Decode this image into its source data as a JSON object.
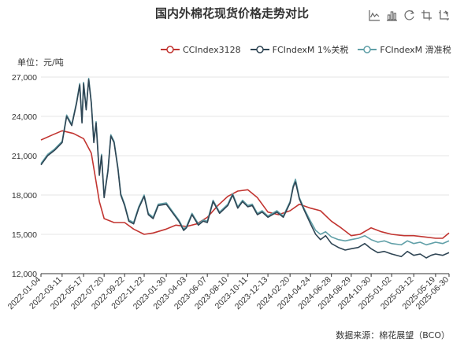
{
  "title": "国内外棉花现货价格走势对比",
  "unit_label": "单位：元/吨",
  "source_label": "数据来源：棉花展望（BCO）",
  "toolbox": [
    {
      "name": "line-chart-icon"
    },
    {
      "name": "bar-chart-icon"
    },
    {
      "name": "restore-icon"
    },
    {
      "name": "zoom-select-icon"
    },
    {
      "name": "zoom-reset-icon"
    }
  ],
  "colors": {
    "CCIndex3128": "#c23531",
    "FCIndexM_1pct": "#2f4554",
    "FCIndexM_sliding": "#61a0a8"
  },
  "chart_data": {
    "type": "line",
    "title": "国内外棉花现货价格走势对比",
    "ylabel": "单位：元/吨",
    "ylim": [
      12000,
      27000
    ],
    "yticks": [
      12000,
      15000,
      18000,
      21000,
      24000,
      27000
    ],
    "ytick_labels": [
      "12,000",
      "15,000",
      "18,000",
      "21,000",
      "24,000",
      "27,000"
    ],
    "x_range": [
      "2022-01-04",
      "2025-06-30"
    ],
    "xtick_labels": [
      "2022-01-04",
      "2022-03-11",
      "2022-05-17",
      "2022-07-20",
      "2022-09-22",
      "2022-11-22",
      "2023-01-30",
      "2023-04-03",
      "2023-06-07",
      "2023-08-10",
      "2023-10-11",
      "2023-12-13",
      "2024-02-20",
      "2024-04-24",
      "2024-06-28",
      "2024-08-29",
      "2024-10-30",
      "2025-01-02",
      "2025-03-12",
      "2025-05-19",
      "2025-06-30"
    ],
    "grid": true,
    "legend": "top",
    "series": [
      {
        "name": "CCIndex3128",
        "color": "#c23531",
        "points": [
          [
            "2022-01-04",
            22200
          ],
          [
            "2022-02-10",
            22600
          ],
          [
            "2022-03-11",
            22900
          ],
          [
            "2022-04-15",
            22700
          ],
          [
            "2022-05-17",
            22300
          ],
          [
            "2022-06-10",
            21200
          ],
          [
            "2022-06-25",
            19000
          ],
          [
            "2022-07-05",
            17500
          ],
          [
            "2022-07-20",
            16200
          ],
          [
            "2022-08-20",
            15900
          ],
          [
            "2022-09-22",
            15900
          ],
          [
            "2022-10-20",
            15400
          ],
          [
            "2022-11-22",
            15000
          ],
          [
            "2022-12-20",
            15100
          ],
          [
            "2023-01-30",
            15400
          ],
          [
            "2023-03-01",
            15700
          ],
          [
            "2023-04-03",
            15600
          ],
          [
            "2023-05-05",
            15800
          ],
          [
            "2023-06-07",
            16300
          ],
          [
            "2023-07-10",
            17200
          ],
          [
            "2023-08-10",
            17900
          ],
          [
            "2023-09-10",
            18300
          ],
          [
            "2023-10-11",
            18400
          ],
          [
            "2023-11-10",
            17800
          ],
          [
            "2023-12-13",
            16700
          ],
          [
            "2024-01-15",
            16500
          ],
          [
            "2024-02-20",
            16800
          ],
          [
            "2024-03-20",
            17300
          ],
          [
            "2024-04-24",
            17000
          ],
          [
            "2024-05-25",
            16800
          ],
          [
            "2024-06-28",
            16000
          ],
          [
            "2024-07-28",
            15500
          ],
          [
            "2024-08-29",
            14900
          ],
          [
            "2024-09-25",
            15000
          ],
          [
            "2024-10-30",
            15500
          ],
          [
            "2024-12-01",
            15200
          ],
          [
            "2025-01-02",
            15000
          ],
          [
            "2025-02-10",
            14900
          ],
          [
            "2025-03-12",
            14900
          ],
          [
            "2025-04-15",
            14800
          ],
          [
            "2025-05-19",
            14700
          ],
          [
            "2025-06-10",
            14700
          ],
          [
            "2025-06-30",
            15100
          ]
        ]
      },
      {
        "name": "FCIndexM 1%关税",
        "color": "#2f4554",
        "points": [
          [
            "2022-01-04",
            20300
          ],
          [
            "2022-01-25",
            21000
          ],
          [
            "2022-02-15",
            21400
          ],
          [
            "2022-03-11",
            22000
          ],
          [
            "2022-03-25",
            24000
          ],
          [
            "2022-04-10",
            23300
          ],
          [
            "2022-04-25",
            25000
          ],
          [
            "2022-05-05",
            26400
          ],
          [
            "2022-05-12",
            23500
          ],
          [
            "2022-05-17",
            26500
          ],
          [
            "2022-05-25",
            24500
          ],
          [
            "2022-06-02",
            26800
          ],
          [
            "2022-06-10",
            25000
          ],
          [
            "2022-06-18",
            22000
          ],
          [
            "2022-06-25",
            23500
          ],
          [
            "2022-07-05",
            19500
          ],
          [
            "2022-07-12",
            21000
          ],
          [
            "2022-07-20",
            17800
          ],
          [
            "2022-08-01",
            19800
          ],
          [
            "2022-08-10",
            22500
          ],
          [
            "2022-08-20",
            22000
          ],
          [
            "2022-09-01",
            20000
          ],
          [
            "2022-09-10",
            18000
          ],
          [
            "2022-09-22",
            17200
          ],
          [
            "2022-10-05",
            16000
          ],
          [
            "2022-10-20",
            15800
          ],
          [
            "2022-11-05",
            17000
          ],
          [
            "2022-11-22",
            17900
          ],
          [
            "2022-12-05",
            16500
          ],
          [
            "2022-12-20",
            16200
          ],
          [
            "2023-01-05",
            17200
          ],
          [
            "2023-01-30",
            17300
          ],
          [
            "2023-02-20",
            16600
          ],
          [
            "2023-03-10",
            16000
          ],
          [
            "2023-03-25",
            15300
          ],
          [
            "2023-04-03",
            15500
          ],
          [
            "2023-04-20",
            16500
          ],
          [
            "2023-05-10",
            15700
          ],
          [
            "2023-05-25",
            16000
          ],
          [
            "2023-06-07",
            15900
          ],
          [
            "2023-06-25",
            17500
          ],
          [
            "2023-07-15",
            16600
          ],
          [
            "2023-08-10",
            17200
          ],
          [
            "2023-08-25",
            18000
          ],
          [
            "2023-09-10",
            17000
          ],
          [
            "2023-09-25",
            17500
          ],
          [
            "2023-10-11",
            17100
          ],
          [
            "2023-10-25",
            17200
          ],
          [
            "2023-11-10",
            16500
          ],
          [
            "2023-11-25",
            16700
          ],
          [
            "2023-12-13",
            16300
          ],
          [
            "2024-01-10",
            16700
          ],
          [
            "2024-01-30",
            16300
          ],
          [
            "2024-02-20",
            17400
          ],
          [
            "2024-03-01",
            18600
          ],
          [
            "2024-03-08",
            19000
          ],
          [
            "2024-03-20",
            17700
          ],
          [
            "2024-04-05",
            16800
          ],
          [
            "2024-04-24",
            15800
          ],
          [
            "2024-05-10",
            15000
          ],
          [
            "2024-05-25",
            14600
          ],
          [
            "2024-06-10",
            14900
          ],
          [
            "2024-06-28",
            14300
          ],
          [
            "2024-07-20",
            14000
          ],
          [
            "2024-08-10",
            13800
          ],
          [
            "2024-08-29",
            13900
          ],
          [
            "2024-09-20",
            14000
          ],
          [
            "2024-10-10",
            14300
          ],
          [
            "2024-10-30",
            13900
          ],
          [
            "2024-11-20",
            13600
          ],
          [
            "2024-12-10",
            13700
          ],
          [
            "2025-01-02",
            13500
          ],
          [
            "2025-02-01",
            13300
          ],
          [
            "2025-02-20",
            13700
          ],
          [
            "2025-03-12",
            13400
          ],
          [
            "2025-04-01",
            13500
          ],
          [
            "2025-04-20",
            13200
          ],
          [
            "2025-05-05",
            13400
          ],
          [
            "2025-05-19",
            13500
          ],
          [
            "2025-06-10",
            13400
          ],
          [
            "2025-06-30",
            13600
          ]
        ]
      },
      {
        "name": "FCIndexM 滑准税",
        "color": "#61a0a8",
        "points": [
          [
            "2022-01-04",
            20400
          ],
          [
            "2022-01-25",
            21100
          ],
          [
            "2022-02-15",
            21500
          ],
          [
            "2022-03-11",
            22100
          ],
          [
            "2022-03-25",
            24100
          ],
          [
            "2022-04-10",
            23400
          ],
          [
            "2022-04-25",
            25100
          ],
          [
            "2022-05-05",
            26500
          ],
          [
            "2022-05-12",
            23600
          ],
          [
            "2022-05-17",
            26600
          ],
          [
            "2022-05-25",
            24600
          ],
          [
            "2022-06-02",
            26900
          ],
          [
            "2022-06-10",
            25100
          ],
          [
            "2022-06-18",
            22100
          ],
          [
            "2022-06-25",
            23600
          ],
          [
            "2022-07-05",
            19600
          ],
          [
            "2022-07-12",
            21100
          ],
          [
            "2022-07-20",
            17900
          ],
          [
            "2022-08-01",
            19900
          ],
          [
            "2022-08-10",
            22600
          ],
          [
            "2022-08-20",
            22100
          ],
          [
            "2022-09-01",
            20100
          ],
          [
            "2022-09-10",
            18100
          ],
          [
            "2022-09-22",
            17300
          ],
          [
            "2022-10-05",
            16100
          ],
          [
            "2022-10-20",
            15900
          ],
          [
            "2022-11-05",
            17100
          ],
          [
            "2022-11-22",
            18000
          ],
          [
            "2022-12-05",
            16600
          ],
          [
            "2022-12-20",
            16300
          ],
          [
            "2023-01-05",
            17300
          ],
          [
            "2023-01-30",
            17400
          ],
          [
            "2023-02-20",
            16700
          ],
          [
            "2023-03-10",
            16100
          ],
          [
            "2023-03-25",
            15400
          ],
          [
            "2023-04-03",
            15600
          ],
          [
            "2023-04-20",
            16600
          ],
          [
            "2023-05-10",
            15800
          ],
          [
            "2023-05-25",
            16100
          ],
          [
            "2023-06-07",
            16000
          ],
          [
            "2023-06-25",
            17600
          ],
          [
            "2023-07-15",
            16700
          ],
          [
            "2023-08-10",
            17300
          ],
          [
            "2023-08-25",
            18100
          ],
          [
            "2023-09-10",
            17100
          ],
          [
            "2023-09-25",
            17600
          ],
          [
            "2023-10-11",
            17200
          ],
          [
            "2023-10-25",
            17300
          ],
          [
            "2023-11-10",
            16600
          ],
          [
            "2023-11-25",
            16800
          ],
          [
            "2023-12-13",
            16400
          ],
          [
            "2024-01-10",
            16800
          ],
          [
            "2024-01-30",
            16400
          ],
          [
            "2024-02-20",
            17500
          ],
          [
            "2024-03-01",
            18700
          ],
          [
            "2024-03-08",
            19200
          ],
          [
            "2024-03-20",
            17800
          ],
          [
            "2024-04-05",
            16900
          ],
          [
            "2024-04-24",
            16000
          ],
          [
            "2024-05-10",
            15300
          ],
          [
            "2024-05-25",
            15000
          ],
          [
            "2024-06-10",
            15200
          ],
          [
            "2024-06-28",
            14800
          ],
          [
            "2024-07-20",
            14600
          ],
          [
            "2024-08-10",
            14500
          ],
          [
            "2024-08-29",
            14600
          ],
          [
            "2024-09-20",
            14700
          ],
          [
            "2024-10-10",
            14900
          ],
          [
            "2024-10-30",
            14600
          ],
          [
            "2024-11-20",
            14400
          ],
          [
            "2024-12-10",
            14500
          ],
          [
            "2025-01-02",
            14300
          ],
          [
            "2025-02-01",
            14200
          ],
          [
            "2025-02-20",
            14500
          ],
          [
            "2025-03-12",
            14300
          ],
          [
            "2025-04-01",
            14400
          ],
          [
            "2025-04-20",
            14200
          ],
          [
            "2025-05-05",
            14300
          ],
          [
            "2025-05-19",
            14400
          ],
          [
            "2025-06-10",
            14300
          ],
          [
            "2025-06-30",
            14500
          ]
        ]
      }
    ]
  }
}
